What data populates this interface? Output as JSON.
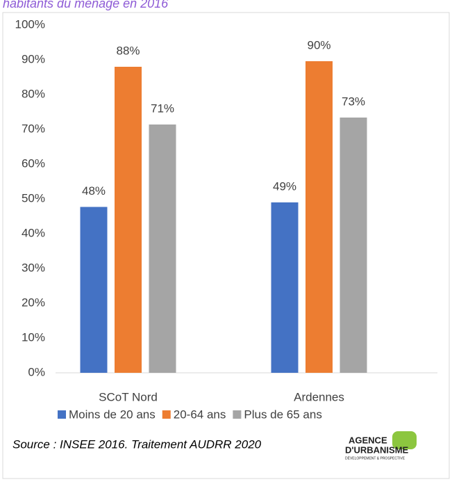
{
  "chart_data": {
    "type": "bar",
    "title": "habitants du ménage en 2016",
    "categories": [
      "SCoT Nord",
      "Ardennes"
    ],
    "series": [
      {
        "name": "Moins de 20 ans",
        "color": "#4472c4",
        "values": [
          47.7,
          49
        ],
        "value_labels": [
          "48%",
          "49%"
        ]
      },
      {
        "name": "20-64 ans",
        "color": "#ed7d31",
        "values": [
          88,
          89.6
        ],
        "value_labels": [
          "88%",
          "90%"
        ]
      },
      {
        "name": "Plus de 65 ans",
        "color": "#a5a5a5",
        "values": [
          71.4,
          73.4
        ],
        "value_labels": [
          "71%",
          "73%"
        ]
      }
    ],
    "ylim": [
      0,
      100
    ],
    "yticks": [
      {
        "value": 0,
        "label": "0%"
      },
      {
        "value": 10,
        "label": "10%"
      },
      {
        "value": 20,
        "label": "20%"
      },
      {
        "value": 30,
        "label": "30%"
      },
      {
        "value": 40,
        "label": "40%"
      },
      {
        "value": 50,
        "label": "50%"
      },
      {
        "value": 60,
        "label": "60%"
      },
      {
        "value": 70,
        "label": "70%"
      },
      {
        "value": 80,
        "label": "80%"
      },
      {
        "value": 90,
        "label": "90%"
      },
      {
        "value": 100,
        "label": "100%"
      }
    ],
    "grid": false,
    "legend": "bottom",
    "source": "Source : INSEE 2016. Traitement AUDRR 2020",
    "logo": {
      "line1": "AGENCE",
      "line2": "D'URBANISME",
      "line3": "DÉVELOPPEMENT & PROSPECTIVE"
    }
  }
}
